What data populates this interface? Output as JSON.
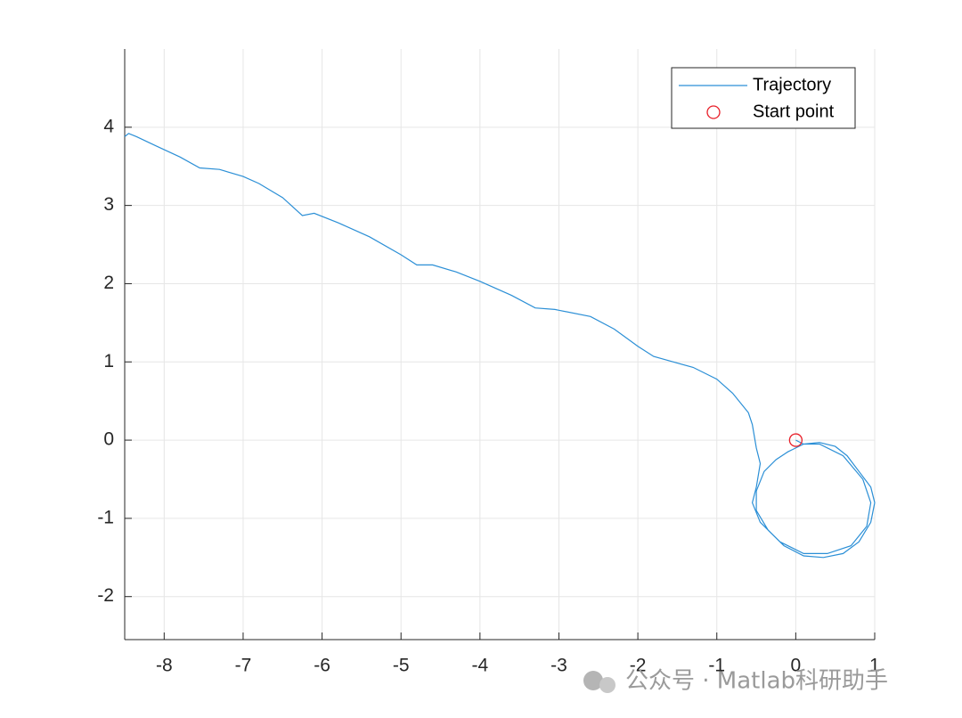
{
  "chart_data": {
    "type": "line",
    "xlim": [
      -8.5,
      1
    ],
    "ylim": [
      -2.55,
      5
    ],
    "xticks": [
      -8,
      -7,
      -6,
      -5,
      -4,
      -3,
      -2,
      -1,
      0,
      1
    ],
    "yticks": [
      -2,
      -1,
      0,
      1,
      2,
      3,
      4
    ],
    "grid": true,
    "legend": "northeast",
    "watermark": "公众号 · Matlab科研助手",
    "series": [
      {
        "name": "Trajectory",
        "color": "#2b8fd6",
        "marker": "none",
        "x": [
          0,
          0.1,
          0.3,
          0.5,
          0.65,
          0.8,
          0.95,
          1.0,
          0.95,
          0.8,
          0.6,
          0.35,
          0.1,
          -0.15,
          -0.35,
          -0.5,
          -0.5,
          -0.4,
          -0.25,
          -0.1,
          0.1,
          0.3,
          0.6,
          0.85,
          0.95,
          0.9,
          0.7,
          0.4,
          0.1,
          -0.2,
          -0.45,
          -0.55,
          -0.5,
          -0.45,
          -0.5,
          -0.55,
          -0.6,
          -0.8,
          -1.0,
          -1.3,
          -1.55,
          -1.8,
          -2.0,
          -2.3,
          -2.6,
          -3.0,
          -3.05,
          -3.3,
          -3.6,
          -4.0,
          -4.3,
          -4.6,
          -4.8,
          -5.0,
          -5.4,
          -5.8,
          -6.1,
          -6.25,
          -6.5,
          -6.8,
          -7.0,
          -7.3,
          -7.55,
          -7.8,
          -8.1,
          -8.35,
          -8.45,
          -8.5
        ],
        "y": [
          0,
          -0.05,
          -0.03,
          -0.08,
          -0.2,
          -0.4,
          -0.6,
          -0.8,
          -1.05,
          -1.3,
          -1.45,
          -1.5,
          -1.48,
          -1.35,
          -1.15,
          -0.9,
          -0.65,
          -0.4,
          -0.25,
          -0.15,
          -0.05,
          -0.05,
          -0.2,
          -0.5,
          -0.8,
          -1.1,
          -1.35,
          -1.45,
          -1.45,
          -1.3,
          -1.05,
          -0.8,
          -0.6,
          -0.3,
          -0.1,
          0.2,
          0.35,
          0.6,
          0.78,
          0.93,
          1.0,
          1.07,
          1.2,
          1.42,
          1.58,
          1.66,
          1.67,
          1.69,
          1.85,
          2.03,
          2.15,
          2.24,
          2.24,
          2.37,
          2.6,
          2.78,
          2.9,
          2.87,
          3.1,
          3.28,
          3.37,
          3.46,
          3.48,
          3.62,
          3.76,
          3.88,
          3.92,
          3.88
        ]
      },
      {
        "name": "Start point",
        "color": "#e8202a",
        "marker": "o",
        "x": [
          0
        ],
        "y": [
          0
        ]
      }
    ]
  }
}
